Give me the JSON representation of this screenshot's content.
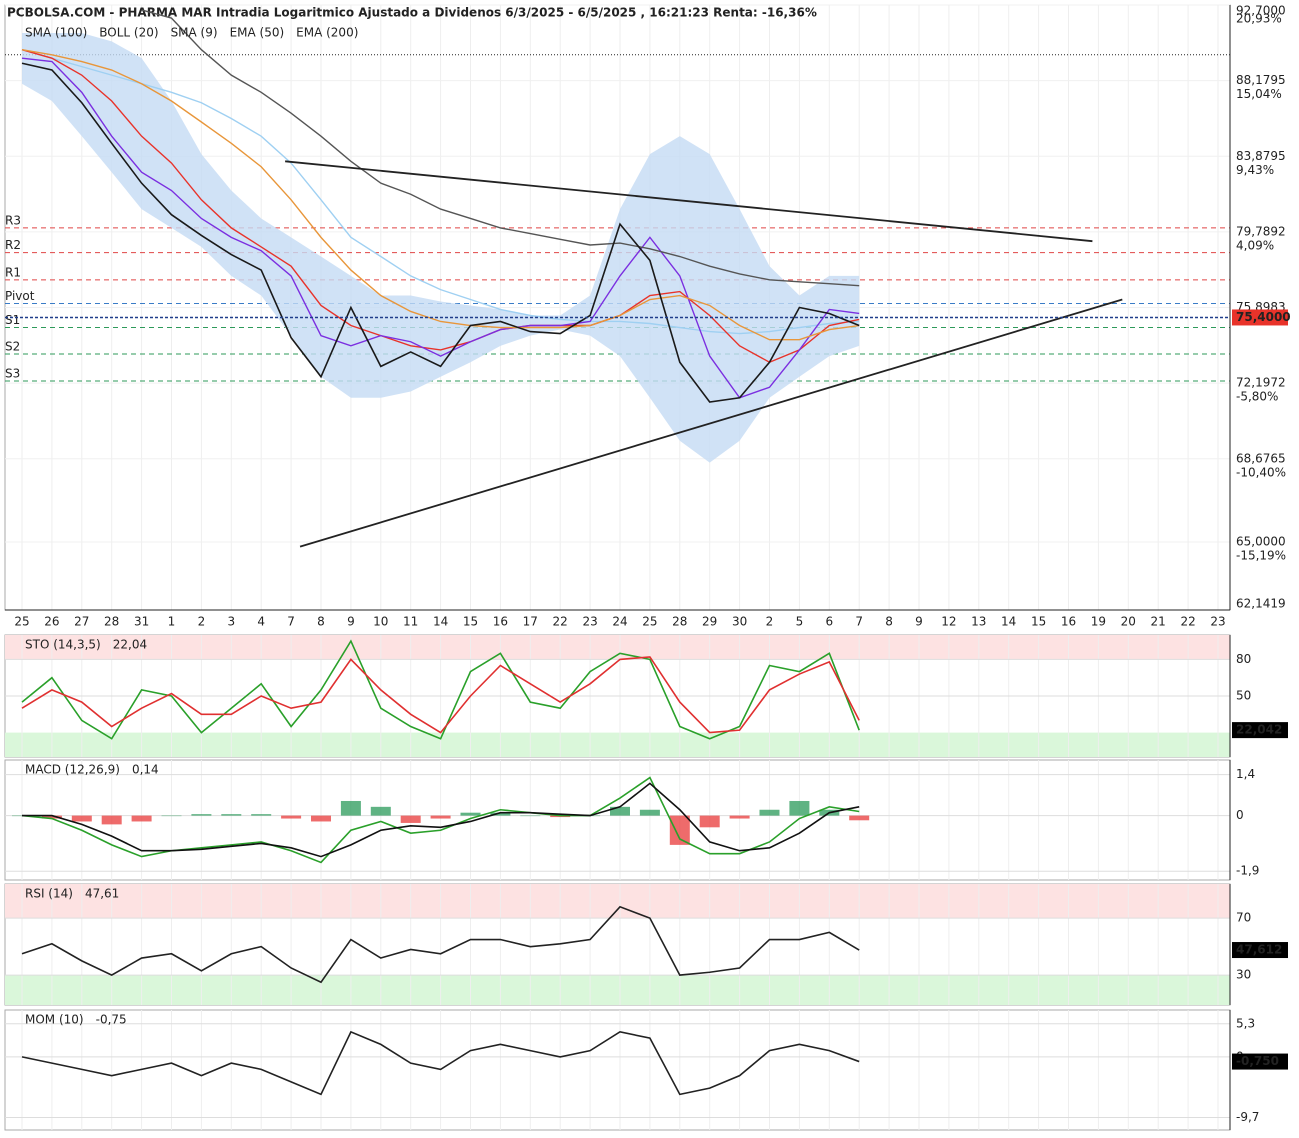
{
  "chart_data": [
    {
      "type": "line",
      "title": "PCBOLSA.COM - PHARMA MAR Intradia Logaritmico Ajustado a Dividenos 6/3/2025 - 6/5/2025 , 16:21:23 Renta: -16,36%",
      "categories": [
        "25",
        "26",
        "27",
        "28",
        "31",
        "1",
        "2",
        "3",
        "4",
        "7",
        "8",
        "9",
        "10",
        "11",
        "14",
        "15",
        "16",
        "17",
        "22",
        "23",
        "24",
        "25",
        "28",
        "29",
        "30",
        "2",
        "5",
        "6",
        "7",
        "8",
        "9",
        "12",
        "13",
        "14",
        "15",
        "16",
        "19",
        "20",
        "21",
        "22",
        "23"
      ],
      "log_scale": true,
      "ylim": [
        62.1419,
        92.7
      ],
      "yticks": [
        {
          "value": 92.7,
          "label": "92,7000"
        },
        {
          "value": 88.1795,
          "label": "88,1795"
        },
        {
          "value": 83.8795,
          "label": "83,8795"
        },
        {
          "value": 79.7892,
          "label": "79,7892"
        },
        {
          "value": 75.8983,
          "label": "75,8983"
        },
        {
          "value": 72.1972,
          "label": "72,1972"
        },
        {
          "value": 68.6765,
          "label": "68,6765"
        },
        {
          "value": 65.0,
          "label": "65,0000"
        },
        {
          "value": 62.1419,
          "label": "62,1419"
        }
      ],
      "percent_labels": [
        {
          "value": 92.7,
          "label": "20,93%"
        },
        {
          "value": 88.1795,
          "label": "15,04%"
        },
        {
          "value": 83.8795,
          "label": "9,43%"
        },
        {
          "value": 79.7892,
          "label": "4,09%"
        },
        {
          "value": 72.1972,
          "label": "-5,80%"
        },
        {
          "value": 68.6765,
          "label": "-10,40%"
        },
        {
          "value": 65.0,
          "label": "-15,19%"
        }
      ],
      "last": {
        "value": 75.4,
        "label": "75,4000",
        "color": "#e8332a"
      },
      "reference_line": 89.7,
      "levels": [
        {
          "label": "R3",
          "value": 80.0,
          "color": "#e04545"
        },
        {
          "label": "R2",
          "value": 78.7,
          "color": "#e04545"
        },
        {
          "label": "R1",
          "value": 77.3,
          "color": "#e04545"
        },
        {
          "label": "Pivot",
          "value": 76.1,
          "color": "#3a7cc7"
        },
        {
          "label": "S1",
          "value": 74.9,
          "color": "#2e9a5a"
        },
        {
          "label": "S2",
          "value": 73.6,
          "color": "#2e9a5a"
        },
        {
          "label": "S3",
          "value": 72.3,
          "color": "#2e9a5a"
        }
      ],
      "trendlines": [
        {
          "x": [
            8.8,
            35.8
          ],
          "y": [
            83.6,
            79.3
          ]
        },
        {
          "x": [
            9.3,
            36.8
          ],
          "y": [
            64.8,
            76.3
          ]
        }
      ],
      "series": [
        {
          "name": "SMA (100)",
          "color": "#9fd0f2",
          "values": [
            90,
            89.5,
            89,
            88.5,
            88,
            87.5,
            86.9,
            86,
            85,
            83.5,
            81.5,
            79.5,
            78.5,
            77.5,
            76.8,
            76.3,
            75.8,
            75.5,
            75.3,
            75.2,
            75.2,
            75.1,
            74.9,
            74.7,
            74.6,
            74.7,
            74.9,
            75.1,
            75.2,
            null,
            null,
            null,
            null,
            null,
            null,
            null,
            null,
            null,
            null,
            null,
            null
          ]
        },
        {
          "name": "BOLL (20)",
          "color": "#e8332a",
          "band_color": "#c4dbf4",
          "values": [
            90,
            89.5,
            88.5,
            87,
            85,
            83.5,
            81.5,
            80,
            79,
            78,
            76,
            75,
            74.5,
            74,
            73.8,
            74.2,
            74.8,
            75,
            75,
            75,
            75.5,
            76.5,
            76.7,
            75.5,
            74,
            73.2,
            73.8,
            75,
            75.3,
            null,
            null,
            null,
            null,
            null,
            null,
            null,
            null,
            null,
            null,
            null,
            null
          ],
          "upper": [
            91,
            91,
            91,
            90.5,
            89.5,
            87,
            84,
            82,
            80.5,
            79.5,
            78.5,
            77.5,
            76.5,
            76.5,
            76.2,
            76,
            75.8,
            75.5,
            75.5,
            76.5,
            81,
            84,
            85,
            84,
            81,
            78,
            76.5,
            77.5,
            77.5,
            null,
            null,
            null,
            null,
            null,
            null,
            null,
            null,
            null,
            null,
            null,
            null
          ],
          "lower": [
            88,
            87,
            85,
            83,
            81,
            80,
            79,
            77.5,
            76.5,
            74.5,
            72.5,
            71.5,
            71.5,
            71.8,
            72.5,
            73.2,
            74,
            74.5,
            74.8,
            74.5,
            73.5,
            71.5,
            69.5,
            68.5,
            69.5,
            71.5,
            72.5,
            73.5,
            74,
            null,
            null,
            null,
            null,
            null,
            null,
            null,
            null,
            null,
            null,
            null,
            null
          ]
        },
        {
          "name": "SMA (9)",
          "color": "#7b2fe0",
          "values": [
            89.5,
            89.3,
            87.5,
            85,
            83,
            82,
            80.5,
            79.5,
            78.8,
            77.5,
            74.5,
            74,
            74.5,
            74.2,
            73.5,
            74.2,
            74.8,
            75,
            75,
            75.2,
            77.5,
            79.5,
            77.5,
            73.5,
            71.5,
            72,
            73.8,
            75.8,
            75.6,
            null,
            null,
            null,
            null,
            null,
            null,
            null,
            null,
            null,
            null,
            null,
            null
          ]
        },
        {
          "name": "EMA (50)",
          "color": "#e8963a",
          "values": [
            90,
            89.7,
            89.3,
            88.8,
            88,
            87,
            85.8,
            84.6,
            83.3,
            81.5,
            79.5,
            77.8,
            76.5,
            75.7,
            75.2,
            75,
            74.9,
            74.9,
            74.9,
            75,
            75.5,
            76.3,
            76.5,
            76,
            75,
            74.3,
            74.3,
            74.8,
            75,
            null,
            null,
            null,
            null,
            null,
            null,
            null,
            null,
            null,
            null,
            null,
            null
          ]
        },
        {
          "name": "EMA (200)",
          "color": "#555555",
          "values": [
            null,
            null,
            null,
            null,
            92.4,
            91.9,
            90,
            88.5,
            87.5,
            86.3,
            85,
            83.6,
            82.4,
            81.8,
            81,
            80.5,
            80,
            79.7,
            79.4,
            79.1,
            79.2,
            78.9,
            78.5,
            78,
            77.6,
            77.3,
            77.2,
            77.1,
            77,
            null,
            null,
            null,
            null,
            null,
            null,
            null,
            null,
            null,
            null,
            null,
            null
          ]
        },
        {
          "color": "#1a1a1a",
          "values": [
            89.2,
            88.8,
            86.9,
            84.6,
            82.4,
            80.7,
            79.6,
            78.6,
            77.8,
            74.4,
            72.5,
            75.9,
            73,
            73.7,
            73,
            75,
            75.2,
            74.7,
            74.6,
            75.5,
            80.2,
            78.3,
            73.2,
            71.3,
            71.5,
            73.2,
            75.9,
            75.6,
            75,
            null,
            null,
            null,
            null,
            null,
            null,
            null,
            null,
            null,
            null,
            null,
            null
          ]
        }
      ]
    },
    {
      "type": "line",
      "title": "STO (14,3,5)",
      "value_label": "22,04",
      "ylim": [
        0,
        100
      ],
      "yticks": [
        80,
        50
      ],
      "tick_colors": [
        "#d62020",
        "#333333"
      ],
      "zones": [
        {
          "from": 80,
          "to": 100,
          "color": "#fde2e2"
        },
        {
          "from": 0,
          "to": 20,
          "color": "#daf7da"
        }
      ],
      "last": {
        "value": 22.042,
        "label": "22,042",
        "color": "#000000"
      },
      "series": [
        {
          "color": "#2aa02a",
          "values": [
            45,
            65,
            30,
            15,
            55,
            50,
            20,
            40,
            60,
            25,
            55,
            95,
            40,
            25,
            15,
            70,
            85,
            45,
            40,
            70,
            85,
            80,
            25,
            15,
            25,
            75,
            70,
            85,
            22
          ]
        },
        {
          "color": "#e03030",
          "values": [
            40,
            55,
            45,
            25,
            40,
            52,
            35,
            35,
            50,
            40,
            45,
            80,
            55,
            35,
            20,
            50,
            75,
            60,
            45,
            60,
            80,
            82,
            45,
            20,
            22,
            55,
            68,
            78,
            30
          ]
        }
      ]
    },
    {
      "type": "line",
      "title": "MACD (12,26,9)",
      "value_label": "0,14",
      "ylim": [
        -2.2,
        1.9
      ],
      "yticks": [
        {
          "value": 1.4,
          "label": "1,4"
        },
        0,
        {
          "value": -1.9,
          "label": "-1,9"
        }
      ],
      "tick_colors": [
        "#d62020",
        "#333333",
        "#2a8a2a"
      ],
      "series": [
        {
          "type": "bar",
          "colors": [
            "#2a9a5a",
            "#e83a3a"
          ],
          "values": [
            0,
            -0.1,
            -0.2,
            -0.3,
            -0.2,
            0,
            0.05,
            0.05,
            0.05,
            -0.1,
            -0.2,
            0.5,
            0.3,
            -0.25,
            -0.1,
            0.1,
            0.1,
            0,
            -0.05,
            0,
            0.3,
            0.2,
            -1,
            -0.4,
            -0.1,
            0.2,
            0.5,
            0.2,
            -0.16
          ]
        },
        {
          "color": "#2aa02a",
          "values": [
            0,
            -0.1,
            -0.5,
            -1,
            -1.4,
            -1.2,
            -1.1,
            -1,
            -0.9,
            -1.2,
            -1.6,
            -0.5,
            -0.2,
            -0.6,
            -0.5,
            -0.1,
            0.2,
            0.1,
            0,
            0,
            0.6,
            1.3,
            -0.8,
            -1.3,
            -1.3,
            -0.9,
            -0.1,
            0.3,
            0.14
          ]
        },
        {
          "color": "#111111",
          "values": [
            0,
            0,
            -0.3,
            -0.7,
            -1.2,
            -1.2,
            -1.15,
            -1.05,
            -0.95,
            -1.1,
            -1.4,
            -1,
            -0.5,
            -0.35,
            -0.4,
            -0.2,
            0.1,
            0.1,
            0.05,
            0,
            0.3,
            1.1,
            0.2,
            -0.9,
            -1.2,
            -1.1,
            -0.6,
            0.1,
            0.3
          ]
        }
      ]
    },
    {
      "type": "line",
      "title": "RSI (14)",
      "value_label": "47,61",
      "ylim": [
        9,
        94
      ],
      "yticks": [
        70,
        30
      ],
      "tick_colors": [
        "#d62020",
        "#2a8a2a"
      ],
      "zones": [
        {
          "from": 70,
          "to": 94,
          "color": "#fde2e2"
        },
        {
          "from": 9,
          "to": 30,
          "color": "#daf7da"
        }
      ],
      "last": {
        "value": 47.612,
        "label": "47,612",
        "color": "#000000"
      },
      "series": [
        {
          "color": "#222222",
          "values": [
            45,
            52,
            40,
            30,
            42,
            45,
            33,
            45,
            50,
            35,
            25,
            55,
            42,
            48,
            45,
            55,
            55,
            50,
            52,
            55,
            78,
            70,
            30,
            32,
            35,
            55,
            55,
            60,
            47.6
          ]
        }
      ]
    },
    {
      "type": "line",
      "title": "MOM (10)",
      "value_label": "-0,75",
      "ylim": [
        -11.7,
        7.5
      ],
      "yticks": [
        {
          "value": 5.3,
          "label": "5,3"
        },
        0,
        {
          "value": -9.7,
          "label": "-9,7"
        }
      ],
      "tick_colors": [
        "#d62020",
        "#333333",
        "#2a8a2a"
      ],
      "last": {
        "value": -0.75,
        "label": "-0,750",
        "color": "#000000"
      },
      "series": [
        {
          "color": "#222222",
          "values": [
            0,
            -1,
            -2,
            -3,
            -2,
            -1,
            -3,
            -1,
            -2,
            -4,
            -6,
            4,
            2,
            -1,
            -2,
            1,
            2,
            1,
            0,
            1,
            4,
            3,
            -6,
            -5,
            -3,
            1,
            2,
            1,
            -0.75
          ]
        }
      ]
    }
  ]
}
